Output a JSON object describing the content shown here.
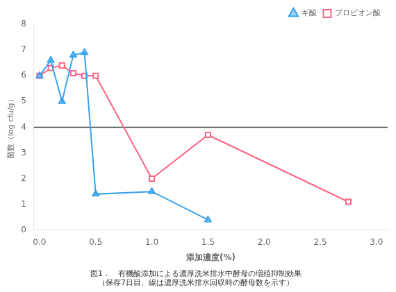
{
  "chart_data": {
    "type": "line",
    "xlabel": "添加濃度(%)",
    "ylabel": "菌数（log cfu/g）",
    "caption": [
      "図1．　有機酸添加による濃厚洗米排水中酵母の増殖抑制効果",
      "（保存7日目、線は濃厚洗米排水回収時の酵母数を示す）"
    ],
    "series": [
      {
        "name": "ギ酸",
        "x": [
          0.0,
          0.1,
          0.2,
          0.3,
          0.4,
          0.5,
          1.0,
          1.5
        ],
        "values": [
          6.0,
          6.6,
          5.0,
          6.8,
          6.9,
          1.4,
          1.5,
          0.4
        ],
        "marker": "triangle"
      },
      {
        "name": "プロピオン酸",
        "x": [
          0.0,
          0.1,
          0.2,
          0.3,
          0.4,
          0.5,
          1.0,
          1.5,
          2.75
        ],
        "values": [
          6.0,
          6.3,
          6.4,
          6.1,
          6.0,
          6.0,
          2.0,
          3.7,
          1.1
        ],
        "marker": "square"
      }
    ],
    "hline_y": 4.0,
    "xlim": [
      -0.05,
      3.1
    ],
    "ylim": [
      0,
      8
    ],
    "xticks": [
      {
        "value": 0,
        "label": "0.0"
      },
      0.5,
      {
        "value": 1.0,
        "label": "1.0"
      },
      1.5,
      {
        "value": 2.0,
        "label": "2.0"
      },
      2.5,
      {
        "value": 3.0,
        "label": "3.0"
      }
    ],
    "yticks": [
      0,
      1,
      2,
      3,
      4,
      5,
      6,
      7,
      8
    ],
    "legend": "upper right",
    "grid": false
  }
}
